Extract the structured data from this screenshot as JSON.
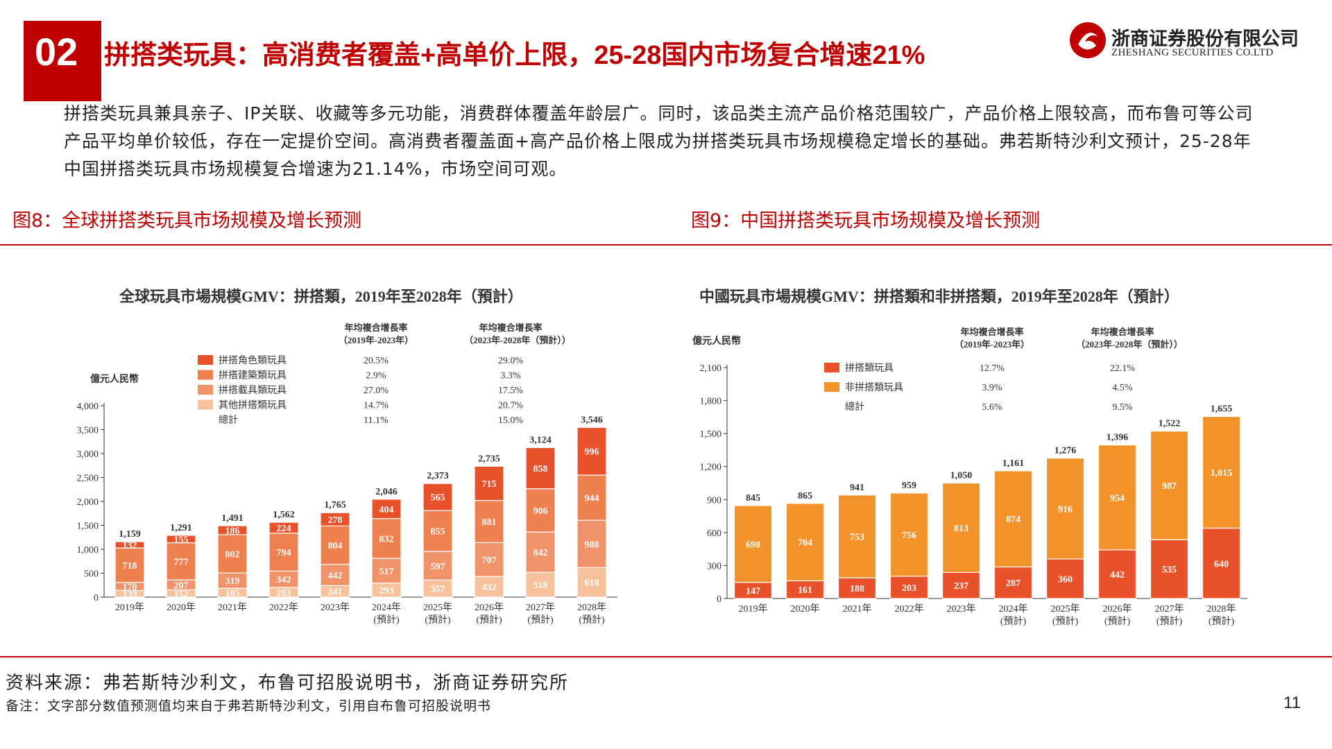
{
  "header": {
    "section_number": "02",
    "title": "拼搭类玩具：高消费者覆盖+高单价上限，25-28国内市场复合增速21%",
    "logo_cn": "浙商证券股份有限公司",
    "logo_en": "ZHESHANG SECURITIES CO.LTD"
  },
  "body_text": "拼搭类玩具兼具亲子、IP关联、收藏等多元功能，消费群体覆盖年龄层广。同时，该品类主流产品价格范围较广，产品价格上限较高，而布鲁可等公司产品平均单价较低，存在一定提价空间。高消费者覆盖面+高产品价格上限成为拼搭类玩具市场规模稳定增长的基础。弗若斯特沙利文预计，25-28年中国拼搭类玩具市场规模复合增速为21.14%，市场空间可观。",
  "figures": {
    "fig8_title": "图8：全球拼搭类玩具市场规模及增长预测",
    "fig9_title": "图9：中国拼搭类玩具市场规模及增长预测"
  },
  "footer": {
    "source": "资料来源：弗若斯特沙利文，布鲁可招股说明书，浙商证券研究所",
    "note": "备注：文字部分数值预测值均来自于弗若斯特沙利文，引用自布鲁可招股说明书",
    "page": "11"
  },
  "colors": {
    "brand_red": "#c00000",
    "global_series": [
      "#e8512a",
      "#ef8150",
      "#f0936a",
      "#f7c19c"
    ],
    "china_series": [
      "#e8512a",
      "#f2922a"
    ]
  },
  "chart_data": [
    {
      "type": "bar",
      "stacked": true,
      "title": "全球玩具市場規模GMV：拼搭類，2019年至2028年（預計）",
      "ylabel": "億元人民幣",
      "ylim": [
        0,
        4000
      ],
      "yticks": [
        "0",
        "500",
        "1,000",
        "1,500",
        "2,000",
        "2,500",
        "3,000",
        "3,500",
        "4,000"
      ],
      "categories": [
        "2019年",
        "2020年",
        "2021年",
        "2022年",
        "2023年",
        "2024年",
        "2025年",
        "2026年",
        "2027年",
        "2028年"
      ],
      "category_notes": [
        "",
        "",
        "",
        "",
        "",
        "(預計)",
        "(預計)",
        "(預計)",
        "(預計)",
        "(預計)"
      ],
      "cagr_headers": [
        "年均複合增長率",
        "（2019年-2023年）",
        "年均複合增長率",
        "（2023年-2028年（預計））"
      ],
      "series": [
        {
          "name": "其他拼搭類玩具",
          "values": [
            139,
            152,
            185,
            203,
            241,
            293,
            357,
            432,
            518,
            618
          ],
          "cagr_2019_2023": "14.7%",
          "cagr_2023_2028": "20.7%"
        },
        {
          "name": "拼搭載具類玩具",
          "values": [
            170,
            207,
            319,
            342,
            442,
            517,
            597,
            707,
            842,
            988
          ],
          "cagr_2019_2023": "27.0%",
          "cagr_2023_2028": "17.5%"
        },
        {
          "name": "拼搭建築類玩具",
          "values": [
            718,
            777,
            802,
            794,
            804,
            832,
            855,
            881,
            906,
            944
          ],
          "cagr_2019_2023": "2.9%",
          "cagr_2023_2028": "3.3%"
        },
        {
          "name": "拼搭角色類玩具",
          "values": [
            132,
            155,
            186,
            224,
            278,
            404,
            565,
            715,
            858,
            996
          ],
          "cagr_2019_2023": "20.5%",
          "cagr_2023_2028": "29.0%"
        }
      ],
      "totals": {
        "name": "總計",
        "values": [
          "1,159",
          "1,291",
          "1,491",
          "1,562",
          "1,765",
          "2,046",
          "2,373",
          "2,735",
          "3,124",
          "3,546"
        ],
        "cagr_2019_2023": "11.1%",
        "cagr_2023_2028": "15.0%"
      },
      "legend_order": [
        "拼搭角色類玩具",
        "拼搭建築類玩具",
        "拼搭載具類玩具",
        "其他拼搭類玩具"
      ],
      "grid": false,
      "legend": "top-left"
    },
    {
      "type": "bar",
      "stacked": true,
      "title": "中國玩具市場規模GMV：拼搭類和非拼搭類，2019年至2028年（預計）",
      "ylabel": "億元人民幣",
      "ylim": [
        0,
        2100
      ],
      "yticks": [
        "0",
        "300",
        "600",
        "900",
        "1,200",
        "1,500",
        "1,800",
        "2,100"
      ],
      "categories": [
        "2019年",
        "2020年",
        "2021年",
        "2022年",
        "2023年",
        "2024年",
        "2025年",
        "2026年",
        "2027年",
        "2028年"
      ],
      "category_notes": [
        "",
        "",
        "",
        "",
        "",
        "(預計)",
        "(預計)",
        "(預計)",
        "(預計)",
        "(預計)"
      ],
      "cagr_headers": [
        "年均複合增長率",
        "（2019年-2023年）",
        "年均複合增長率",
        "（2023年-2028年（預計））"
      ],
      "series": [
        {
          "name": "拼搭類玩具",
          "values": [
            147,
            161,
            188,
            203,
            237,
            287,
            360,
            442,
            535,
            640
          ],
          "cagr_2019_2023": "12.7%",
          "cagr_2023_2028": "22.1%"
        },
        {
          "name": "非拼搭類玩具",
          "values": [
            698,
            704,
            753,
            756,
            813,
            874,
            916,
            954,
            987,
            1015
          ],
          "cagr_2019_2023": "3.9%",
          "cagr_2023_2028": "4.5%"
        }
      ],
      "series_labels": [
        [
          "147",
          "161",
          "188",
          "203",
          "237",
          "287",
          "360",
          "442",
          "535",
          "640"
        ],
        [
          "698",
          "704",
          "753",
          "756",
          "813",
          "874",
          "916",
          "954",
          "987",
          "1,015"
        ]
      ],
      "totals": {
        "name": "總計",
        "values": [
          "845",
          "865",
          "941",
          "959",
          "1,050",
          "1,161",
          "1,276",
          "1,396",
          "1,522",
          "1,655"
        ],
        "cagr_2019_2023": "5.6%",
        "cagr_2023_2028": "9.5%"
      },
      "legend_order": [
        "拼搭類玩具",
        "非拼搭類玩具"
      ],
      "grid": false,
      "legend": "top-left"
    }
  ]
}
